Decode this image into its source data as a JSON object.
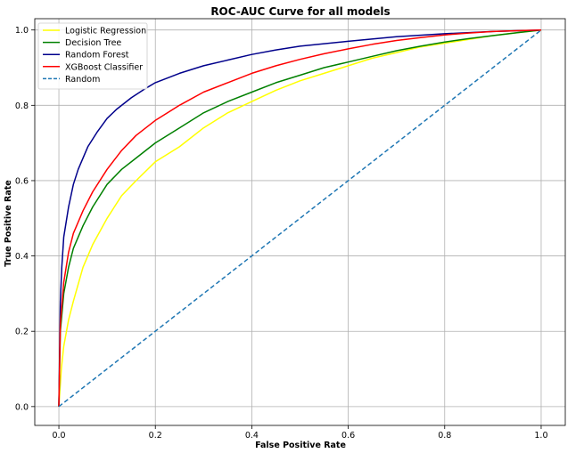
{
  "chart_data": {
    "type": "line",
    "title": "ROC-AUC Curve for all models",
    "xlabel": "False Positive Rate",
    "ylabel": "True Positive Rate",
    "xlim": [
      -0.05,
      1.05
    ],
    "ylim": [
      -0.05,
      1.03
    ],
    "xticks": [
      0.0,
      0.2,
      0.4,
      0.6,
      0.8,
      1.0
    ],
    "xtick_labels": [
      "0.0",
      "0.2",
      "0.4",
      "0.6",
      "0.8",
      "1.0"
    ],
    "yticks": [
      0.0,
      0.2,
      0.4,
      0.6,
      0.8,
      1.0
    ],
    "ytick_labels": [
      "0.0",
      "0.2",
      "0.4",
      "0.6",
      "0.8",
      "1.0"
    ],
    "grid": true,
    "legend_position": "upper-left",
    "series": [
      {
        "name": "Logistic Regression",
        "color": "#ffff00",
        "dash": "solid",
        "x": [
          0,
          0.005,
          0.01,
          0.02,
          0.03,
          0.05,
          0.07,
          0.1,
          0.13,
          0.16,
          0.2,
          0.25,
          0.3,
          0.35,
          0.4,
          0.45,
          0.5,
          0.55,
          0.6,
          0.65,
          0.7,
          0.75,
          0.8,
          0.85,
          0.9,
          0.95,
          1.0
        ],
        "y": [
          0,
          0.1,
          0.16,
          0.23,
          0.28,
          0.37,
          0.43,
          0.5,
          0.56,
          0.6,
          0.65,
          0.69,
          0.74,
          0.78,
          0.81,
          0.84,
          0.865,
          0.885,
          0.905,
          0.925,
          0.94,
          0.955,
          0.965,
          0.975,
          0.985,
          0.993,
          1.0
        ]
      },
      {
        "name": "Decision Tree",
        "color": "#008000",
        "dash": "solid",
        "x": [
          0,
          0.003,
          0.01,
          0.02,
          0.03,
          0.05,
          0.07,
          0.1,
          0.13,
          0.16,
          0.2,
          0.25,
          0.3,
          0.35,
          0.4,
          0.45,
          0.5,
          0.55,
          0.6,
          0.65,
          0.7,
          0.75,
          0.8,
          0.85,
          0.9,
          0.95,
          1.0
        ],
        "y": [
          0,
          0.2,
          0.3,
          0.37,
          0.42,
          0.48,
          0.53,
          0.59,
          0.63,
          0.66,
          0.7,
          0.74,
          0.78,
          0.81,
          0.835,
          0.86,
          0.88,
          0.9,
          0.915,
          0.93,
          0.945,
          0.957,
          0.968,
          0.977,
          0.985,
          0.993,
          1.0
        ]
      },
      {
        "name": "Random Forest",
        "color": "#00008b",
        "dash": "solid",
        "x": [
          0,
          0.003,
          0.006,
          0.01,
          0.02,
          0.03,
          0.04,
          0.06,
          0.08,
          0.1,
          0.12,
          0.15,
          0.18,
          0.2,
          0.25,
          0.3,
          0.35,
          0.4,
          0.45,
          0.5,
          0.6,
          0.7,
          0.8,
          0.9,
          1.0
        ],
        "y": [
          0,
          0.28,
          0.37,
          0.45,
          0.53,
          0.59,
          0.63,
          0.69,
          0.73,
          0.765,
          0.79,
          0.82,
          0.845,
          0.86,
          0.885,
          0.905,
          0.92,
          0.935,
          0.947,
          0.957,
          0.97,
          0.982,
          0.99,
          0.996,
          1.0
        ]
      },
      {
        "name": "XGBoost Classifier",
        "color": "#ff0000",
        "dash": "solid",
        "x": [
          0,
          0.003,
          0.01,
          0.02,
          0.03,
          0.05,
          0.07,
          0.1,
          0.13,
          0.16,
          0.2,
          0.25,
          0.3,
          0.35,
          0.4,
          0.45,
          0.5,
          0.55,
          0.6,
          0.65,
          0.7,
          0.75,
          0.8,
          0.85,
          0.9,
          0.95,
          1.0
        ],
        "y": [
          0,
          0.22,
          0.33,
          0.41,
          0.46,
          0.52,
          0.57,
          0.63,
          0.68,
          0.72,
          0.76,
          0.8,
          0.835,
          0.86,
          0.885,
          0.905,
          0.922,
          0.937,
          0.95,
          0.962,
          0.972,
          0.98,
          0.987,
          0.992,
          0.996,
          0.998,
          1.0
        ]
      },
      {
        "name": "Random",
        "color": "#1f77b4",
        "dash": "dashed",
        "x": [
          0,
          1
        ],
        "y": [
          0,
          1
        ]
      }
    ]
  }
}
